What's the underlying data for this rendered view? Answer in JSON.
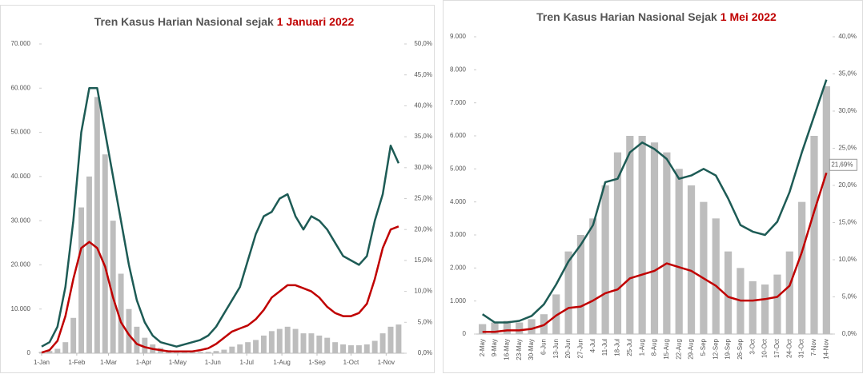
{
  "chart_data": [
    {
      "type": "combo",
      "title": "Tren Kasus Harian Nasional sejak",
      "title_highlight": "1 Januari 2022",
      "x": [
        0,
        7,
        14,
        21,
        28,
        35,
        42,
        49,
        56,
        63,
        70,
        77,
        84,
        91,
        98,
        105,
        112,
        119,
        126,
        133,
        140,
        147,
        154,
        161,
        168,
        175,
        182,
        189,
        196,
        203,
        210,
        217,
        224,
        231,
        238,
        245,
        252,
        259,
        266,
        273,
        280,
        287,
        294,
        301,
        308,
        315
      ],
      "xlim": [
        0,
        320
      ],
      "xticks": [
        {
          "value": 0,
          "label": "1-Jan"
        },
        {
          "value": 31,
          "label": "1-Feb"
        },
        {
          "value": 59,
          "label": "1-Mar"
        },
        {
          "value": 90,
          "label": "1-Apr"
        },
        {
          "value": 120,
          "label": "1-May"
        },
        {
          "value": 151,
          "label": "1-Jun"
        },
        {
          "value": 181,
          "label": "1-Jul"
        },
        {
          "value": 212,
          "label": "1-Aug"
        },
        {
          "value": 243,
          "label": "1-Sep"
        },
        {
          "value": 273,
          "label": "1-Oct"
        },
        {
          "value": 304,
          "label": "1-Nov"
        }
      ],
      "ylim": [
        0,
        70000
      ],
      "yticks": [
        0,
        {
          "value": 10000,
          "label": "10.000"
        },
        {
          "value": 20000,
          "label": "20.000"
        },
        {
          "value": 30000,
          "label": "30.000"
        },
        {
          "value": 40000,
          "label": "40.000"
        },
        {
          "value": 50000,
          "label": "50.000"
        },
        {
          "value": 60000,
          "label": "60.000"
        },
        {
          "value": 70000,
          "label": "70.000"
        }
      ],
      "y2lim": [
        0,
        50
      ],
      "y2ticks": [
        {
          "value": 0,
          "label": "0,0%"
        },
        {
          "value": 5,
          "label": "5,0%"
        },
        {
          "value": 10,
          "label": "10,0%"
        },
        {
          "value": 15,
          "label": "15,0%"
        },
        {
          "value": 20,
          "label": "20,0%"
        },
        {
          "value": 25,
          "label": "25,0%"
        },
        {
          "value": 30,
          "label": "30,0%"
        },
        {
          "value": 35,
          "label": "35,0%"
        },
        {
          "value": 40,
          "label": "40,0%"
        },
        {
          "value": 45,
          "label": "45,0%"
        },
        {
          "value": 50,
          "label": "50,0%"
        }
      ],
      "series": [
        {
          "type": "bar",
          "color": "#bdbdbd",
          "values": [
            300,
            500,
            1000,
            2500,
            8000,
            33000,
            40000,
            58000,
            45000,
            30000,
            18000,
            10000,
            6000,
            3500,
            2000,
            1200,
            700,
            400,
            300,
            250,
            300,
            300,
            500,
            800,
            1500,
            2000,
            2500,
            3000,
            4000,
            5000,
            5500,
            6000,
            5500,
            4500,
            4500,
            4000,
            3500,
            2500,
            2000,
            1800,
            1800,
            2000,
            2800,
            4500,
            6000,
            6500
          ]
        },
        {
          "type": "line",
          "color": "#1d5b55",
          "values": [
            1500,
            2500,
            6000,
            15000,
            30000,
            50000,
            60000,
            60000,
            50000,
            40000,
            30000,
            20000,
            12000,
            7000,
            4000,
            2500,
            2000,
            1500,
            2000,
            2500,
            3000,
            4000,
            6000,
            9000,
            12000,
            15000,
            21000,
            27000,
            31000,
            32000,
            35000,
            36000,
            31000,
            28000,
            31000,
            30000,
            28000,
            25000,
            22000,
            21000,
            20000,
            22000,
            30000,
            36000,
            47000,
            43000
          ]
        },
        {
          "type": "line",
          "color": "#c00000",
          "axis": "y2",
          "values": [
            0.1,
            0.5,
            2,
            6,
            12,
            17,
            18,
            17,
            14,
            9,
            5,
            3,
            1.5,
            1,
            0.7,
            0.5,
            0.3,
            0.3,
            0.3,
            0.3,
            0.5,
            0.8,
            1.5,
            2.5,
            3.5,
            4,
            4.5,
            5.5,
            7,
            9,
            10,
            11,
            11,
            10.5,
            10,
            9,
            7.5,
            6.5,
            6,
            6,
            6.5,
            8,
            12,
            17,
            20,
            20.5
          ]
        }
      ]
    },
    {
      "type": "combo",
      "title": "Tren Kasus Harian Nasional Sejak",
      "title_highlight": "1 Mei 2022",
      "categories": [
        "2-May",
        "9-May",
        "16-May",
        "23-May",
        "30-May",
        "6-Jun",
        "13-Jun",
        "20-Jun",
        "27-Jun",
        "4-Jul",
        "11-Jul",
        "18-Jul",
        "25-Jul",
        "1-Aug",
        "8-Aug",
        "15-Aug",
        "22-Aug",
        "29-Aug",
        "5-Sep",
        "12-Sep",
        "19-Sep",
        "26-Sep",
        "3-Oct",
        "10-Oct",
        "17-Oct",
        "24-Oct",
        "31-Oct",
        "7-Nov",
        "14-Nov"
      ],
      "ylim": [
        0,
        9000
      ],
      "yticks": [
        0,
        {
          "value": 1000,
          "label": "1.000"
        },
        {
          "value": 2000,
          "label": "2.000"
        },
        {
          "value": 3000,
          "label": "3.000"
        },
        {
          "value": 4000,
          "label": "4.000"
        },
        {
          "value": 5000,
          "label": "5.000"
        },
        {
          "value": 6000,
          "label": "6.000"
        },
        {
          "value": 7000,
          "label": "7.000"
        },
        {
          "value": 8000,
          "label": "8.000"
        },
        {
          "value": 9000,
          "label": "9.000"
        }
      ],
      "y2lim": [
        0,
        40
      ],
      "y2ticks": [
        {
          "value": 0,
          "label": "0,0%"
        },
        {
          "value": 5,
          "label": "5,0%"
        },
        {
          "value": 10,
          "label": "10,0%"
        },
        {
          "value": 15,
          "label": "15,0%"
        },
        {
          "value": 20,
          "label": "20,0%"
        },
        {
          "value": 25,
          "label": "25,0%"
        },
        {
          "value": 30,
          "label": "30,0%"
        },
        {
          "value": 35,
          "label": "35,0%"
        },
        {
          "value": 40,
          "label": "40,0%"
        }
      ],
      "series": [
        {
          "type": "bar",
          "color": "#bdbdbd",
          "values": [
            300,
            350,
            400,
            350,
            450,
            600,
            1200,
            2500,
            3000,
            3500,
            4500,
            5500,
            6000,
            6000,
            5800,
            5500,
            5000,
            4500,
            4000,
            3500,
            2500,
            2000,
            1600,
            1500,
            1800,
            2500,
            4000,
            6000,
            7500
          ]
        },
        {
          "type": "line",
          "color": "#1d5b55",
          "values": [
            600,
            350,
            350,
            400,
            550,
            900,
            1500,
            2200,
            2700,
            3300,
            4600,
            4700,
            5500,
            5800,
            5600,
            5300,
            4700,
            4800,
            5000,
            4800,
            4100,
            3300,
            3100,
            3000,
            3400,
            4300,
            5500,
            6600,
            7700
          ]
        },
        {
          "type": "line",
          "color": "#c00000",
          "axis": "y2",
          "values": [
            0.3,
            0.3,
            0.5,
            0.5,
            0.7,
            1.2,
            2.5,
            3.5,
            3.7,
            4.5,
            5.5,
            6,
            7.5,
            8,
            8.5,
            9.5,
            9,
            8.5,
            7.5,
            6.5,
            5,
            4.5,
            4.5,
            4.7,
            5,
            6.5,
            11,
            16.5,
            21.69
          ],
          "value_labels": [
            null,
            null,
            null,
            null,
            null,
            null,
            null,
            null,
            null,
            null,
            null,
            null,
            null,
            null,
            null,
            null,
            null,
            null,
            null,
            null,
            null,
            null,
            null,
            null,
            null,
            null,
            null,
            null,
            "21,69%"
          ]
        }
      ]
    }
  ]
}
